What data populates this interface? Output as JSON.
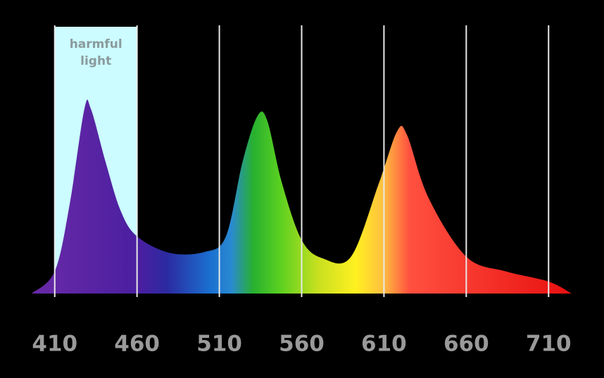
{
  "chart_data": {
    "type": "area",
    "x": [
      396,
      410,
      419,
      428,
      432,
      441,
      450,
      460,
      480,
      501,
      514,
      524,
      533,
      539,
      548,
      560,
      573,
      590,
      607,
      618,
      624,
      637,
      660,
      684,
      710,
      724
    ],
    "values": [
      0,
      12,
      48,
      100,
      100,
      71,
      45,
      31,
      22,
      22.5,
      31,
      71,
      96,
      94,
      60,
      29,
      19,
      20,
      60,
      88,
      86,
      52,
      20,
      12,
      6.5,
      0
    ],
    "xlim": [
      396,
      724
    ],
    "ylim": [
      0,
      100
    ],
    "xticks": [
      410,
      460,
      510,
      560,
      610,
      660,
      710
    ],
    "grid": true,
    "highlight": {
      "label": "harmful light",
      "range": [
        410,
        460
      ]
    }
  }
}
